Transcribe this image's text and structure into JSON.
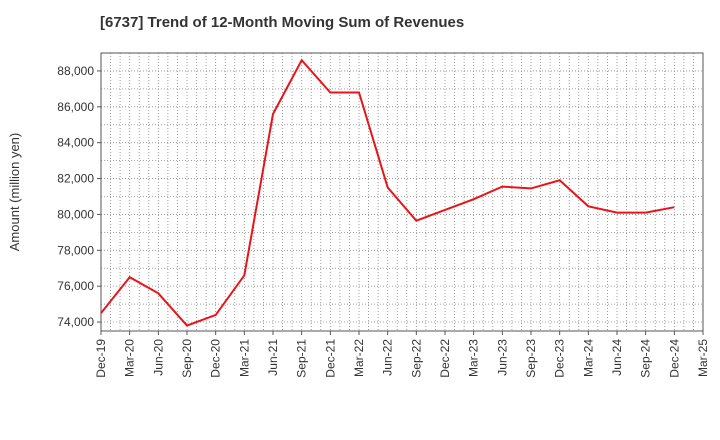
{
  "chart_data": {
    "type": "line",
    "title": "[6737]  Trend of 12-Month Moving Sum of Revenues",
    "xlabel": "",
    "ylabel": "Amount (million yen)",
    "x_ticks": [
      "Dec-19",
      "Mar-20",
      "Jun-20",
      "Sep-20",
      "Dec-20",
      "Mar-21",
      "Jun-21",
      "Sep-21",
      "Dec-21",
      "Mar-22",
      "Jun-22",
      "Sep-22",
      "Dec-22",
      "Mar-23",
      "Jun-23",
      "Sep-23",
      "Dec-23",
      "Mar-24",
      "Jun-24",
      "Sep-24",
      "Dec-24",
      "Mar-25"
    ],
    "y_ticks": [
      "74,000",
      "76,000",
      "78,000",
      "80,000",
      "82,000",
      "84,000",
      "86,000",
      "88,000"
    ],
    "y_tick_values": [
      74000,
      76000,
      78000,
      80000,
      82000,
      84000,
      86000,
      88000
    ],
    "ylim": [
      73500,
      89000
    ],
    "grid": true,
    "series": [
      {
        "color": "#e8141a",
        "x": [
          "Dec-19",
          "Mar-20",
          "Jun-20",
          "Sep-20",
          "Dec-20",
          "Mar-21",
          "Jun-21",
          "Sep-21",
          "Dec-21",
          "Mar-22",
          "Jun-22",
          "Sep-22",
          "Dec-22",
          "Mar-23",
          "Jun-23",
          "Sep-23",
          "Dec-23",
          "Mar-24",
          "Jun-24",
          "Sep-24",
          "Dec-24"
        ],
        "values": [
          74500,
          76500,
          75600,
          73800,
          74400,
          76600,
          85600,
          88600,
          86800,
          86800,
          81500,
          79650,
          80250,
          80850,
          81550,
          81450,
          81900,
          80450,
          80100,
          80100,
          80400
        ]
      }
    ]
  }
}
